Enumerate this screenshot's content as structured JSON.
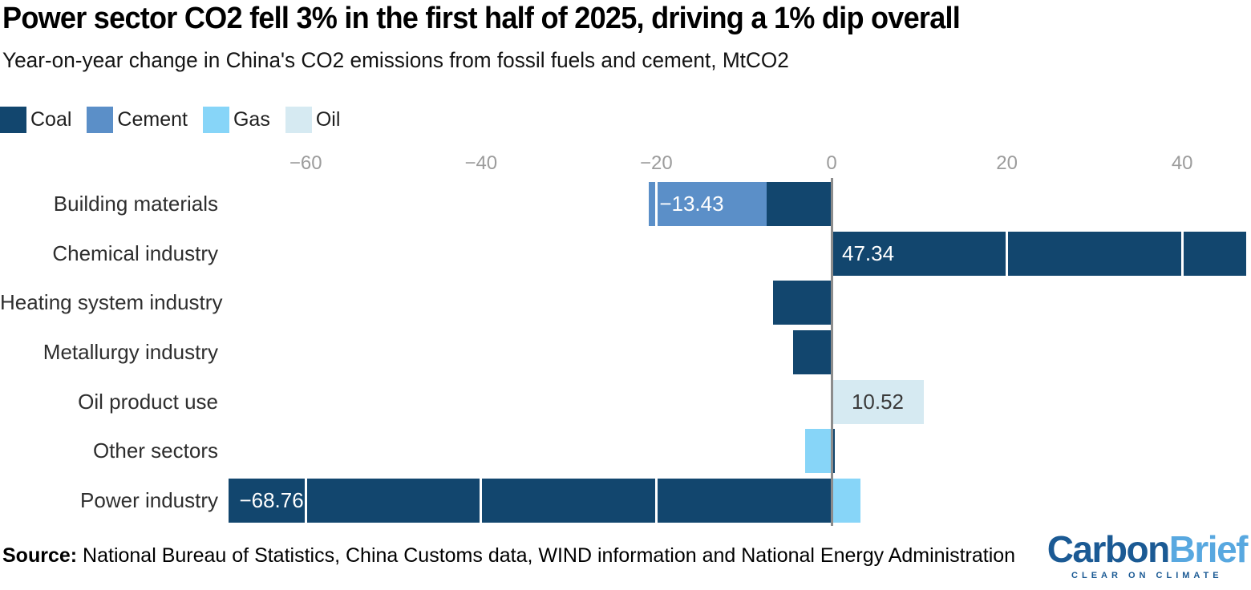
{
  "header": {
    "title": "Power sector CO2 fell 3% in the first half of 2025, driving a 1% dip overall",
    "subtitle": "Year-on-year change in China's CO2 emissions from fossil fuels and cement, MtCO2"
  },
  "legend": [
    {
      "label": "Coal",
      "color": "#12466e"
    },
    {
      "label": "Cement",
      "color": "#5b8fc8"
    },
    {
      "label": "Gas",
      "color": "#87d5f8"
    },
    {
      "label": "Oil",
      "color": "#d6eaf2"
    }
  ],
  "chart_data": {
    "type": "bar",
    "orientation": "horizontal",
    "stacked": true,
    "title": "Power sector CO2 fell 3% in the first half of 2025, driving a 1% dip overall",
    "subtitle": "Year-on-year change in China's CO2 emissions from fossil fuels and cement, MtCO2",
    "unit": "MtCO2",
    "xlabel": "",
    "ylabel": "",
    "xlim": [
      -95,
      48
    ],
    "grid": "white-overlay",
    "x_ticks": [
      {
        "value": -60,
        "label": "−60"
      },
      {
        "value": -40,
        "label": "−40"
      },
      {
        "value": -20,
        "label": "−20"
      },
      {
        "value": 0,
        "label": "0"
      },
      {
        "value": 20,
        "label": "20"
      },
      {
        "value": 40,
        "label": "40"
      }
    ],
    "series_colors": {
      "Coal": "#12466e",
      "Cement": "#5b8fc8",
      "Gas": "#87d5f8",
      "Oil": "#d6eaf2"
    },
    "rows": [
      {
        "category": "Building materials",
        "segments": [
          {
            "series": "Cement",
            "value": -13.43,
            "label": "−13.43",
            "label_color": "#ffffff",
            "label_pos": "left"
          },
          {
            "series": "Coal",
            "value": -7.4
          }
        ]
      },
      {
        "category": "Chemical industry",
        "segments": [
          {
            "series": "Coal",
            "value": 47.34,
            "label": "47.34",
            "label_color": "#ffffff",
            "label_pos": "left"
          }
        ]
      },
      {
        "category": "Heating system industry",
        "segments": [
          {
            "series": "Coal",
            "value": -6.7
          }
        ]
      },
      {
        "category": "Metallurgy industry",
        "segments": [
          {
            "series": "Coal",
            "value": -4.4
          }
        ]
      },
      {
        "category": "Oil product use",
        "segments": [
          {
            "series": "Oil",
            "value": 10.52,
            "label": "10.52",
            "label_color": "#3a3a3a",
            "label_pos": "center"
          }
        ]
      },
      {
        "category": "Other sectors",
        "segments": [
          {
            "series": "Gas",
            "value": -3.0
          },
          {
            "series": "Coal",
            "value": 0.4
          }
        ]
      },
      {
        "category": "Power industry",
        "segments": [
          {
            "series": "Coal",
            "value": -68.76,
            "label": "−68.76",
            "label_color": "#ffffff",
            "label_pos": "left"
          },
          {
            "series": "Gas",
            "value": 3.3
          }
        ]
      }
    ]
  },
  "footer": {
    "source_label": "Source:",
    "source_text": " National Bureau of Statistics, China Customs data, WIND information and National Energy Administration"
  },
  "logo": {
    "part1": "Carbon",
    "part2": "Brief",
    "tagline": "CLEAR ON CLIMATE",
    "color1": "#1b5a94",
    "color2": "#58a8e0"
  }
}
